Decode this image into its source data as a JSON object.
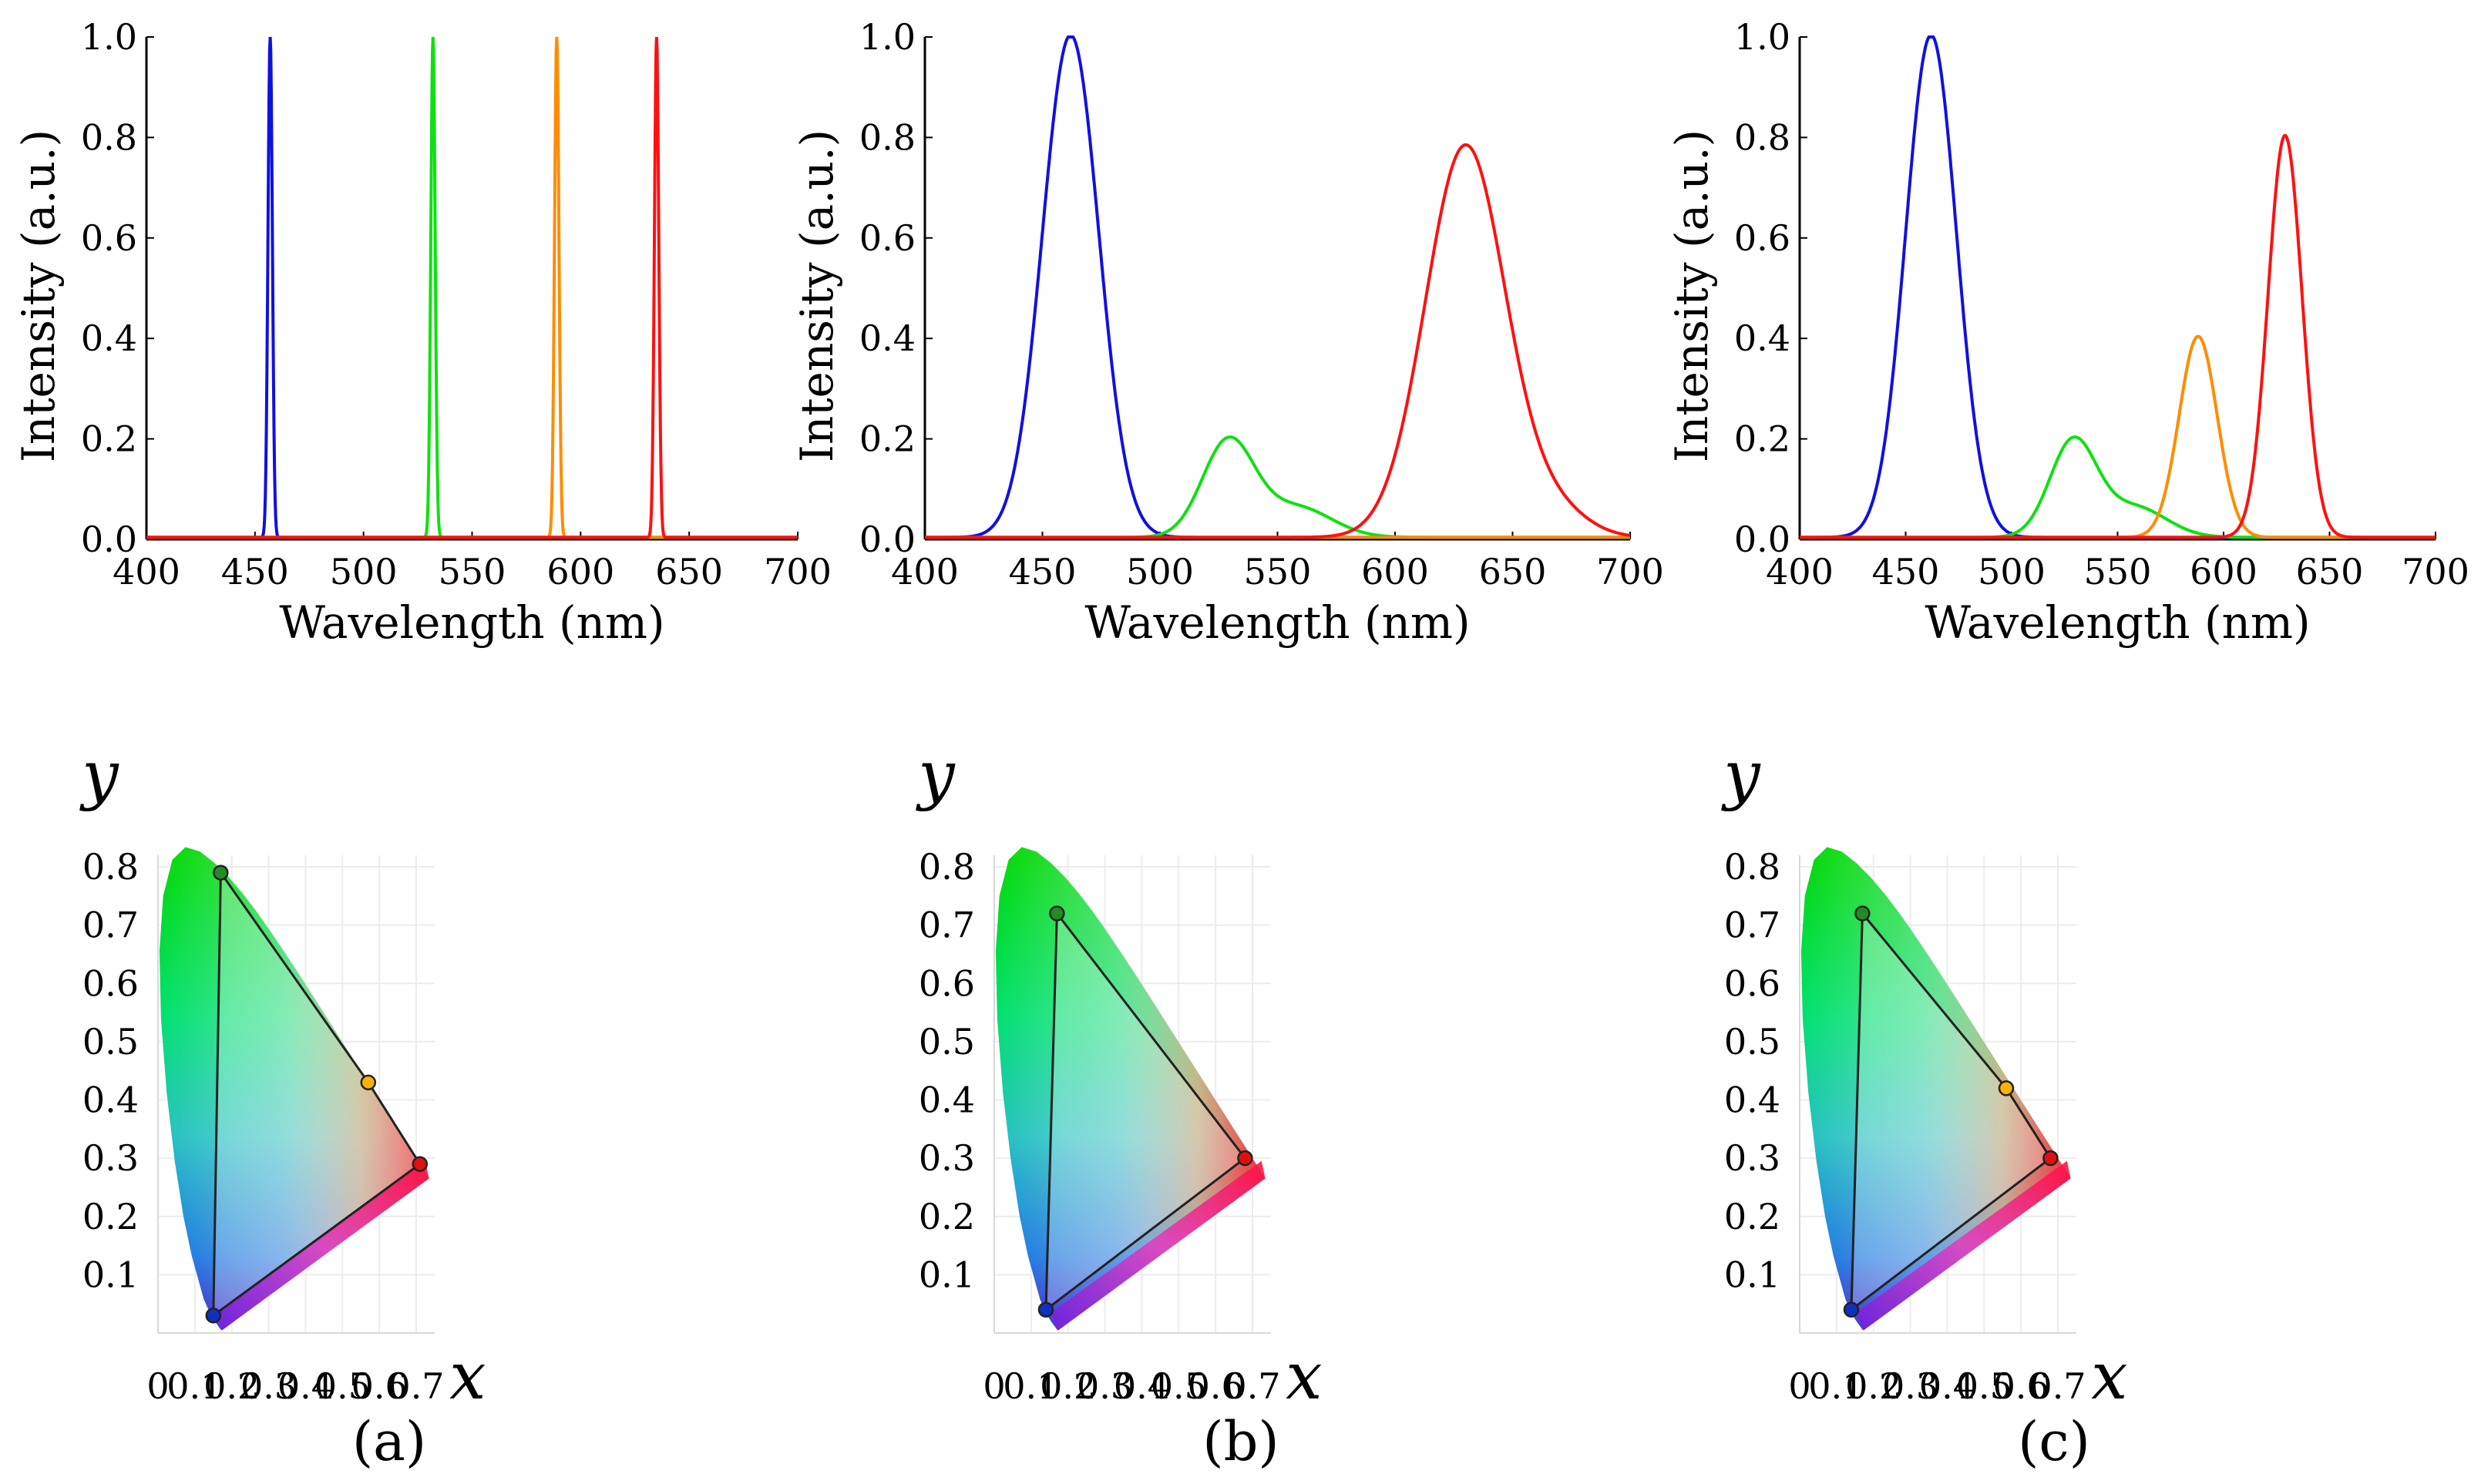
{
  "chart_data": [
    {
      "id": "a-spectrum",
      "type": "line",
      "xlabel": "Wavelength (nm)",
      "ylabel": "Intensity (a.u.)",
      "xlim": [
        400,
        700
      ],
      "ylim": [
        0,
        1.0
      ],
      "xticks": [
        "400",
        "450",
        "500",
        "550",
        "600",
        "650",
        "700"
      ],
      "yticks": [
        "0.0",
        "0.2",
        "0.4",
        "0.6",
        "0.8",
        "1.0"
      ],
      "grid": false,
      "series": [
        {
          "name": "blue",
          "color": "#1010e0",
          "peaks": [
            {
              "center": 457,
              "width": 1.0,
              "amplitude": 1.0
            }
          ]
        },
        {
          "name": "green",
          "color": "#10e010",
          "peaks": [
            {
              "center": 532,
              "width": 1.0,
              "amplitude": 1.0
            }
          ]
        },
        {
          "name": "orange",
          "color": "#ff8c00",
          "peaks": [
            {
              "center": 589,
              "width": 1.0,
              "amplitude": 1.0
            }
          ]
        },
        {
          "name": "red",
          "color": "#ff1010",
          "peaks": [
            {
              "center": 635,
              "width": 1.0,
              "amplitude": 1.0
            }
          ]
        }
      ]
    },
    {
      "id": "b-spectrum",
      "type": "line",
      "xlabel": "Wavelength (nm)",
      "ylabel": "Intensity (a.u.)",
      "xlim": [
        400,
        700
      ],
      "ylim": [
        0,
        1.0
      ],
      "xticks": [
        "400",
        "450",
        "500",
        "550",
        "600",
        "650",
        "700"
      ],
      "yticks": [
        "0.0",
        "0.2",
        "0.4",
        "0.6",
        "0.8",
        "1.0"
      ],
      "grid": false,
      "series": [
        {
          "name": "blue",
          "color": "#1010e0",
          "peaks": [
            {
              "center": 462,
              "width": 12,
              "amplitude": 1.0
            }
          ]
        },
        {
          "name": "green",
          "color": "#10e010",
          "peaks": [
            {
              "center": 529,
              "width": 11,
              "amplitude": 0.19
            },
            {
              "center": 558,
              "width": 15,
              "amplitude": 0.06
            }
          ]
        },
        {
          "name": "orange",
          "color": "#ff8c00",
          "peaks": []
        },
        {
          "name": "red",
          "color": "#ff1010",
          "peaks": [
            {
              "center": 630,
              "width": 17,
              "amplitude": 0.78
            },
            {
              "center": 668,
              "width": 14,
              "amplitude": 0.05
            }
          ]
        }
      ]
    },
    {
      "id": "c-spectrum",
      "type": "line",
      "xlabel": "Wavelength (nm)",
      "ylabel": "Intensity (a.u.)",
      "xlim": [
        400,
        700
      ],
      "ylim": [
        0,
        1.0
      ],
      "xticks": [
        "400",
        "450",
        "500",
        "550",
        "600",
        "650",
        "700"
      ],
      "yticks": [
        "0.0",
        "0.2",
        "0.4",
        "0.6",
        "0.8",
        "1.0"
      ],
      "grid": false,
      "series": [
        {
          "name": "blue",
          "color": "#1010e0",
          "peaks": [
            {
              "center": 462,
              "width": 12,
              "amplitude": 1.0
            }
          ]
        },
        {
          "name": "green",
          "color": "#10e010",
          "peaks": [
            {
              "center": 529,
              "width": 11,
              "amplitude": 0.19
            },
            {
              "center": 558,
              "width": 15,
              "amplitude": 0.06
            }
          ]
        },
        {
          "name": "orange",
          "color": "#ff8c00",
          "peaks": [
            {
              "center": 588,
              "width": 9,
              "amplitude": 0.4
            }
          ]
        },
        {
          "name": "red",
          "color": "#ff1010",
          "peaks": [
            {
              "center": 629,
              "width": 8,
              "amplitude": 0.8
            }
          ]
        }
      ]
    },
    {
      "id": "a-chromaticity",
      "type": "scatter",
      "xlabel": "x",
      "ylabel": "y",
      "xlim": [
        0,
        0.75
      ],
      "ylim": [
        0,
        0.85
      ],
      "xticks": [
        "0",
        "0.1",
        "0.2",
        "0.3",
        "0.4",
        "0.5",
        "0.6",
        "0.7"
      ],
      "yticks": [
        "0.1",
        "0.2",
        "0.3",
        "0.4",
        "0.5",
        "0.6",
        "0.7",
        "0.8"
      ],
      "primaries": [
        {
          "name": "green",
          "x": 0.17,
          "y": 0.79,
          "color": "#228b22"
        },
        {
          "name": "orange",
          "x": 0.57,
          "y": 0.43,
          "color": "#ffb000"
        },
        {
          "name": "red",
          "x": 0.71,
          "y": 0.29,
          "color": "#e01010"
        },
        {
          "name": "blue",
          "x": 0.15,
          "y": 0.03,
          "color": "#1030c0"
        }
      ],
      "caption": "(a)"
    },
    {
      "id": "b-chromaticity",
      "type": "scatter",
      "xlabel": "x",
      "ylabel": "y",
      "xlim": [
        0,
        0.75
      ],
      "ylim": [
        0,
        0.85
      ],
      "xticks": [
        "0",
        "0.1",
        "0.2",
        "0.3",
        "0.4",
        "0.5",
        "0.6",
        "0.7"
      ],
      "yticks": [
        "0.1",
        "0.2",
        "0.3",
        "0.4",
        "0.5",
        "0.6",
        "0.7",
        "0.8"
      ],
      "primaries": [
        {
          "name": "green",
          "x": 0.17,
          "y": 0.72,
          "color": "#228b22"
        },
        {
          "name": "red",
          "x": 0.68,
          "y": 0.3,
          "color": "#e01010"
        },
        {
          "name": "blue",
          "x": 0.14,
          "y": 0.04,
          "color": "#1030c0"
        }
      ],
      "caption": "(b)"
    },
    {
      "id": "c-chromaticity",
      "type": "scatter",
      "xlabel": "x",
      "ylabel": "y",
      "xlim": [
        0,
        0.75
      ],
      "ylim": [
        0,
        0.85
      ],
      "xticks": [
        "0",
        "0.1",
        "0.2",
        "0.3",
        "0.4",
        "0.5",
        "0.6",
        "0.7"
      ],
      "yticks": [
        "0.1",
        "0.2",
        "0.3",
        "0.4",
        "0.5",
        "0.6",
        "0.7",
        "0.8"
      ],
      "primaries": [
        {
          "name": "green",
          "x": 0.17,
          "y": 0.72,
          "color": "#228b22"
        },
        {
          "name": "orange",
          "x": 0.56,
          "y": 0.42,
          "color": "#ffb000"
        },
        {
          "name": "red",
          "x": 0.68,
          "y": 0.3,
          "color": "#e01010"
        },
        {
          "name": "blue",
          "x": 0.14,
          "y": 0.04,
          "color": "#1030c0"
        }
      ],
      "caption": "(c)"
    }
  ]
}
